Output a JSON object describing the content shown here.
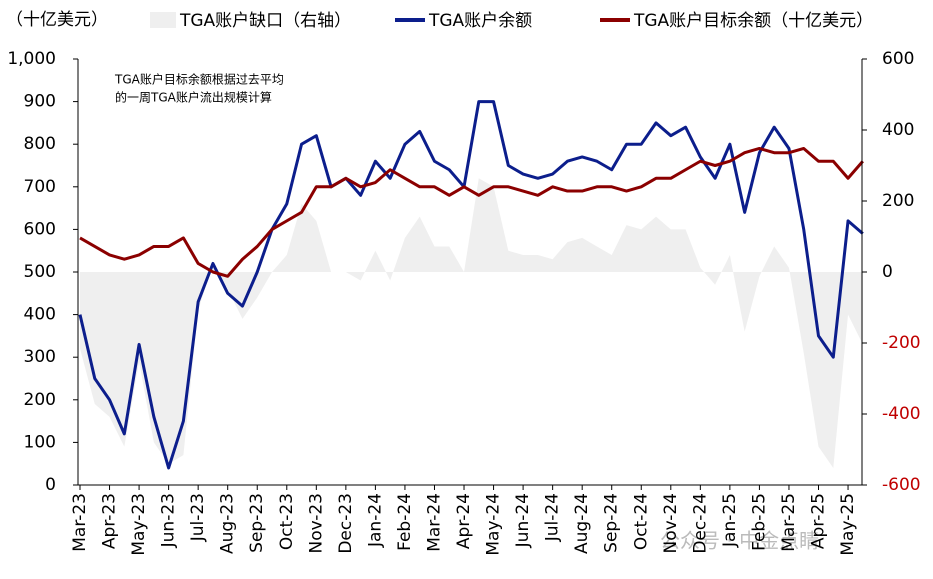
{
  "chart_data": {
    "type": "line",
    "y_axis_label": "（十亿美元）",
    "annotation": [
      "TGA账户目标余额根据过去平均",
      "的一周TGA账户流出规模计算"
    ],
    "watermark": "公众号 · 中金点睛",
    "categories": [
      "Mar-23",
      null,
      "Apr-23",
      null,
      "May-23",
      null,
      "Jun-23",
      null,
      "Jul-23",
      null,
      "Aug-23",
      null,
      "Sep-23",
      null,
      "Oct-23",
      null,
      "Nov-23",
      null,
      "Dec-23",
      null,
      "Jan-24",
      null,
      "Feb-24",
      null,
      "Mar-24",
      null,
      "Apr-24",
      null,
      "May-24",
      null,
      "Jun-24",
      null,
      "Jul-24",
      null,
      "Aug-24",
      null,
      "Sep-24",
      null,
      "Oct-24",
      null,
      "Nov-24",
      null,
      "Dec-24",
      null,
      "Jan-25",
      null,
      "Feb-25",
      null,
      "Mar-25",
      null,
      "Apr-25",
      null,
      "May-25",
      null
    ],
    "series": [
      {
        "name": "TGA账户缺口（右轴）",
        "type": "area",
        "axis": "y2",
        "color": "#efefef",
        "values": [
          -216,
          -372,
          -408,
          -492,
          -252,
          -480,
          -540,
          -516,
          -108,
          24,
          -48,
          -132,
          -72,
          0,
          48,
          192,
          144,
          0,
          0,
          -24,
          60,
          -24,
          96,
          156,
          72,
          72,
          0,
          264,
          240,
          60,
          48,
          48,
          36,
          84,
          96,
          72,
          48,
          132,
          120,
          156,
          120,
          120,
          12,
          -36,
          48,
          -168,
          -12,
          72,
          12,
          -228,
          -492,
          -552,
          -120,
          -204
        ]
      },
      {
        "name": "TGA账户余额",
        "type": "line",
        "color": "#0c1e8c",
        "values": [
          400,
          250,
          200,
          120,
          330,
          160,
          40,
          150,
          430,
          520,
          450,
          420,
          500,
          600,
          660,
          800,
          820,
          700,
          720,
          680,
          760,
          720,
          800,
          830,
          760,
          740,
          700,
          900,
          900,
          750,
          730,
          720,
          730,
          760,
          770,
          760,
          740,
          800,
          800,
          850,
          820,
          840,
          770,
          720,
          800,
          640,
          780,
          840,
          790,
          600,
          350,
          300,
          620,
          590
        ]
      },
      {
        "name": "TGA账户目标余额（十亿美元）",
        "type": "line",
        "color": "#8b0000",
        "values": [
          580,
          560,
          540,
          530,
          540,
          560,
          560,
          580,
          520,
          500,
          490,
          530,
          560,
          600,
          620,
          640,
          700,
          700,
          720,
          700,
          710,
          740,
          720,
          700,
          700,
          680,
          700,
          680,
          700,
          700,
          690,
          680,
          700,
          690,
          690,
          700,
          700,
          690,
          700,
          720,
          720,
          740,
          760,
          750,
          760,
          780,
          790,
          780,
          780,
          790,
          760,
          760,
          720,
          760
        ]
      }
    ],
    "ylim": [
      0,
      1000
    ],
    "yticks": [
      0,
      100,
      200,
      300,
      400,
      500,
      600,
      700,
      800,
      900,
      {
        "value": 1000,
        "label": "1,000"
      }
    ],
    "y2lim": [
      -600,
      600
    ],
    "y2ticks": [
      -600,
      -400,
      -200,
      0,
      200,
      400,
      600
    ],
    "y2_negative_tick_color": "#c00000",
    "grid": false
  }
}
